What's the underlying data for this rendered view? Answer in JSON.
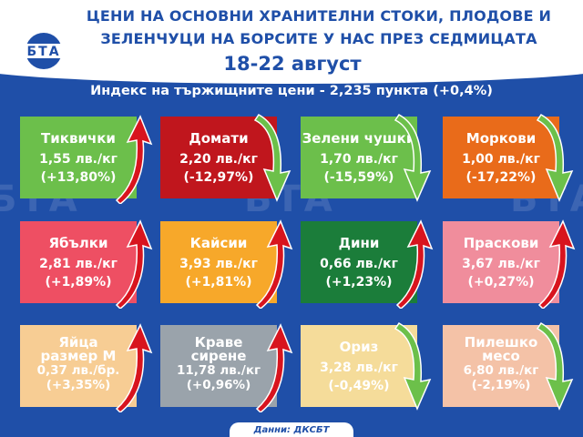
{
  "header": {
    "title_line1": "ЦЕНИ НА ОСНОВНИ ХРАНИТЕЛНИ СТОКИ, ПЛОДОВЕ И",
    "title_line2": "ЗЕЛЕНЧУЦИ НА БОРСИТЕ У НАС ПРЕЗ СЕДМИЦАТА",
    "date": "18-22 август",
    "logo_text": "БТА"
  },
  "index_line": "Индекс на тържищните цени - 2,235 пункта (+0,4%)",
  "watermark": "БТА",
  "tiles": [
    {
      "name": "Тиквички",
      "price": "1,55 лв./кг",
      "change": "(+13,80%)",
      "color": "#6cbf4b",
      "trend": "up"
    },
    {
      "name": "Домати",
      "price": "2,20 лв./кг",
      "change": "(-12,97%)",
      "color": "#c0161d",
      "trend": "down"
    },
    {
      "name": "Зелени чушки",
      "price": "1,70 лв./кг",
      "change": "(-15,59%)",
      "color": "#6cbf4b",
      "trend": "down"
    },
    {
      "name": "Моркови",
      "price": "1,00 лв./кг",
      "change": "(-17,22%)",
      "color": "#e96b1a",
      "trend": "down"
    },
    {
      "name": "Ябълки",
      "price": "2,81 лв./кг",
      "change": "(+1,89%)",
      "color": "#ee4f63",
      "trend": "up"
    },
    {
      "name": "Кайсии",
      "price": "3,93 лв./кг",
      "change": "(+1,81%)",
      "color": "#f7a82a",
      "trend": "up"
    },
    {
      "name": "Дини",
      "price": "0,66 лв./кг",
      "change": "(+1,23%)",
      "color": "#1b7d3a",
      "trend": "up"
    },
    {
      "name": "Праскови",
      "price": "3,67 лв./кг",
      "change": "(+0,27%)",
      "color": "#f08d9c",
      "trend": "up"
    },
    {
      "name": "Яйца\nразмер М",
      "price": "0,37 лв./бр.",
      "change": "(+3,35%)",
      "color": "#f7cd94",
      "trend": "up"
    },
    {
      "name": "Краве\nсирене",
      "price": "11,78 лв./кг",
      "change": "(+0,96%)",
      "color": "#9aa3ab",
      "trend": "up"
    },
    {
      "name": "Ориз",
      "price": "3,28 лв./кг",
      "change": "(-0,49%)",
      "color": "#f5dc9a",
      "trend": "down"
    },
    {
      "name": "Пилешко\nмесо",
      "price": "6,80 лв./кг",
      "change": "(-2,19%)",
      "color": "#f4c2a7",
      "trend": "down"
    }
  ],
  "footer": "Данни: ДКСБТ",
  "colors": {
    "background": "#1f4fa8",
    "up_arrow": "#d8141e",
    "down_arrow": "#6cc04a"
  }
}
